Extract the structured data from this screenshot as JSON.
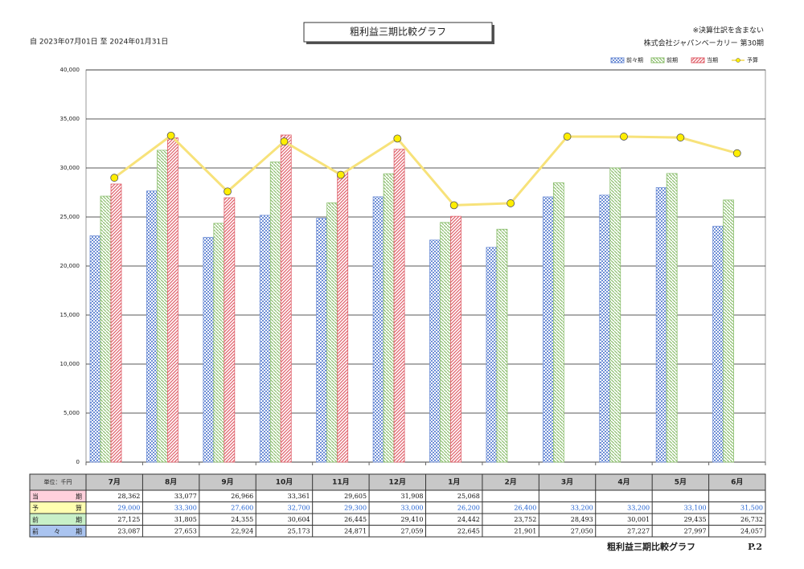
{
  "chart_data": {
    "type": "bar",
    "title": "粗利益三期比較グラフ",
    "period": "自 2023年07月01日 至 2024年01月31日",
    "note": "※決算仕訳を含まない",
    "company": "株式会社ジャパンベーカリー 第30期",
    "unit_label": "単位：千円",
    "footer_title": "粗利益三期比較グラフ",
    "footer_page": "P.2",
    "categories": [
      "7月",
      "8月",
      "9月",
      "10月",
      "11月",
      "12月",
      "1月",
      "2月",
      "3月",
      "4月",
      "5月",
      "6月"
    ],
    "series": [
      {
        "name": "前々期",
        "type": "bar",
        "color": "#6f8fd6",
        "values": [
          23087,
          27653,
          22924,
          25173,
          24871,
          27059,
          22645,
          21901,
          27050,
          27227,
          27997,
          24057
        ],
        "value_labels": [
          "23,087",
          "27,653",
          "22,924",
          "25,173",
          "24,871",
          "27,059",
          "22,645",
          "21,901",
          "27,050",
          "27,227",
          "27,997",
          "24,057"
        ]
      },
      {
        "name": "前期",
        "type": "bar",
        "color": "#8cbf6e",
        "values": [
          27125,
          31805,
          24355,
          30604,
          26445,
          29410,
          24442,
          23752,
          28493,
          30001,
          29435,
          26732
        ],
        "value_labels": [
          "27,125",
          "31,805",
          "24,355",
          "30,604",
          "26,445",
          "29,410",
          "24,442",
          "23,752",
          "28,493",
          "30,001",
          "29,435",
          "26,732"
        ]
      },
      {
        "name": "当期",
        "type": "bar",
        "color": "#e0616b",
        "values": [
          28362,
          33077,
          26966,
          33361,
          29605,
          31908,
          25068,
          null,
          null,
          null,
          null,
          null
        ],
        "value_labels": [
          "28,362",
          "33,077",
          "26,966",
          "33,361",
          "29,605",
          "31,908",
          "25,068",
          null,
          null,
          null,
          null,
          null
        ]
      },
      {
        "name": "予算",
        "type": "line",
        "color": "#f7e27a",
        "marker_color": "#ffee00",
        "values": [
          29000,
          33300,
          27600,
          32700,
          29300,
          33000,
          26200,
          26400,
          33200,
          33200,
          33100,
          31500
        ],
        "value_labels": [
          "29,000",
          "33,300",
          "27,600",
          "32,700",
          "29,300",
          "33,000",
          "26,200",
          "26,400",
          "33,200",
          "33,200",
          "33,100",
          "31,500"
        ]
      }
    ],
    "ylim": [
      0,
      40000
    ],
    "yticks": [
      0,
      {
        "value": 5000,
        "label": "5,000"
      },
      {
        "value": 10000,
        "label": "10,000"
      },
      {
        "value": 15000,
        "label": "15,000"
      },
      {
        "value": 20000,
        "label": "20,000"
      },
      {
        "value": 25000,
        "label": "25,000"
      },
      {
        "value": 30000,
        "label": "30,000"
      },
      {
        "value": 35000,
        "label": "35,000"
      },
      {
        "value": 40000,
        "label": "40,000"
      }
    ],
    "grid": true,
    "legend": "top-right"
  }
}
